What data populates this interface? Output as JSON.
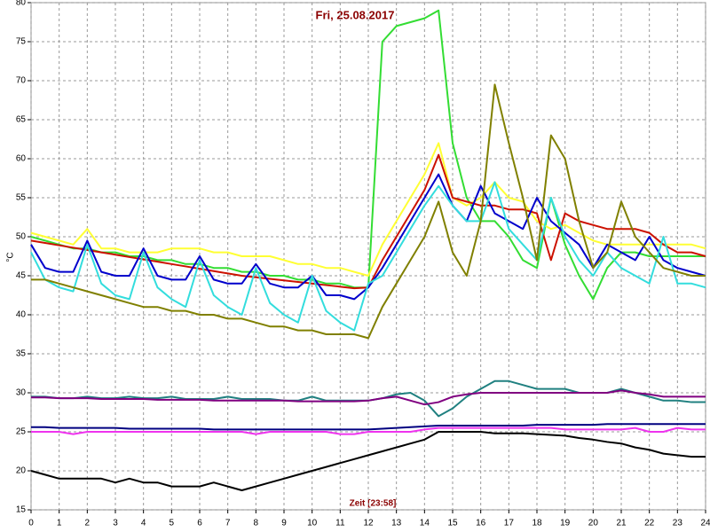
{
  "chart_data": {
    "type": "line",
    "title": "Fri, 25.08.2017",
    "x_label": "Zeit [23:58]",
    "y_label": "°C",
    "xlim": [
      0,
      24
    ],
    "ylim": [
      15,
      80
    ],
    "xticks": [
      0,
      1,
      2,
      3,
      4,
      5,
      6,
      7,
      8,
      9,
      10,
      11,
      12,
      13,
      14,
      15,
      16,
      17,
      18,
      19,
      20,
      21,
      22,
      23,
      24
    ],
    "yticks": [
      15,
      20,
      25,
      30,
      35,
      40,
      45,
      50,
      55,
      60,
      65,
      70,
      75,
      80
    ],
    "grid": true,
    "x": [
      0,
      0.5,
      1,
      1.5,
      2,
      2.5,
      3,
      3.5,
      4,
      4.5,
      5,
      5.5,
      6,
      6.5,
      7,
      7.5,
      8,
      8.5,
      9,
      9.5,
      10,
      10.5,
      11,
      11.5,
      12,
      12.5,
      13,
      13.5,
      14,
      14.5,
      15,
      15.5,
      16,
      16.5,
      17,
      17.5,
      18,
      18.5,
      19,
      19.5,
      20,
      20.5,
      21,
      21.5,
      22,
      22.5,
      23,
      23.5,
      24
    ],
    "series": [
      {
        "color": "#33dd33",
        "values": [
          50,
          49.5,
          49,
          48.5,
          48.5,
          48,
          48,
          47.5,
          47.5,
          47,
          47,
          46.5,
          46.5,
          46,
          46,
          45.5,
          45.5,
          45,
          45,
          44.5,
          44.5,
          44,
          44,
          43.5,
          43.5,
          75,
          77,
          77.5,
          78,
          79,
          62,
          55,
          52,
          52,
          50,
          47,
          46,
          55,
          49,
          45,
          42,
          46,
          48,
          48,
          47.5,
          47.5,
          47.5,
          47.5,
          47.5
        ]
      },
      {
        "color": "#ffff33",
        "values": [
          50.5,
          50,
          49.5,
          49,
          51,
          48.5,
          48.5,
          48,
          48,
          48,
          48.5,
          48.5,
          48.5,
          48,
          48,
          47.5,
          47.5,
          47.5,
          47,
          46.5,
          46.5,
          46,
          46,
          45.5,
          45,
          49,
          52,
          55,
          58,
          62,
          55,
          54,
          55,
          57,
          55,
          54.5,
          52,
          51,
          51.5,
          50.5,
          49.5,
          49,
          49,
          49,
          49,
          49,
          49,
          49,
          48.5
        ]
      },
      {
        "color": "#cc1100",
        "values": [
          49.5,
          49.2,
          48.9,
          48.6,
          48.3,
          48,
          47.7,
          47.4,
          47.1,
          46.8,
          46.5,
          46.2,
          45.9,
          45.6,
          45.3,
          45,
          44.8,
          44.6,
          44.4,
          44.2,
          44,
          43.8,
          43.6,
          43.4,
          43.5,
          47,
          50,
          53,
          56,
          60.5,
          55,
          54.5,
          54,
          54,
          53.5,
          53.5,
          53,
          47,
          53,
          52,
          51.5,
          51,
          51,
          51,
          50.5,
          49,
          48,
          48,
          47.5
        ]
      },
      {
        "color": "#0000cc",
        "values": [
          49,
          46,
          45.5,
          45.5,
          49.5,
          45.5,
          45,
          45,
          48.5,
          45,
          44.5,
          44.5,
          47.5,
          44.5,
          44,
          44,
          46.5,
          44,
          43.5,
          43.5,
          45,
          42.5,
          42.5,
          42,
          43.5,
          46,
          49,
          52,
          55,
          58,
          54,
          52,
          56.5,
          53,
          52,
          51,
          55,
          52,
          50.5,
          49,
          46,
          49,
          48,
          47,
          50,
          47,
          46,
          45.5,
          45
        ]
      },
      {
        "color": "#33dddd",
        "values": [
          48,
          44.5,
          43.5,
          43,
          49,
          44,
          42.5,
          42,
          48,
          43.5,
          42,
          41,
          47,
          42.5,
          41,
          40,
          46,
          41.5,
          40,
          39,
          45,
          40.5,
          39,
          38,
          44,
          45,
          48,
          51,
          54,
          56.5,
          54,
          52,
          52,
          57,
          51,
          49,
          47,
          55,
          50,
          47,
          45,
          48,
          46,
          45,
          44,
          50,
          44,
          44,
          43.5
        ]
      },
      {
        "color": "#808000",
        "values": [
          44.5,
          44.5,
          44,
          43.5,
          43,
          42.5,
          42,
          41.5,
          41,
          41,
          40.5,
          40.5,
          40,
          40,
          39.5,
          39.5,
          39,
          38.5,
          38.5,
          38,
          38,
          37.5,
          37.5,
          37.5,
          37,
          41,
          44,
          47,
          50,
          54.5,
          48,
          45,
          52,
          69.5,
          62,
          55,
          47,
          63,
          60,
          52,
          46,
          48,
          54.5,
          50,
          48,
          46,
          45.5,
          45,
          45
        ]
      },
      {
        "color": "#208080",
        "values": [
          29.5,
          29.5,
          29.3,
          29.3,
          29.5,
          29.3,
          29.3,
          29.5,
          29.3,
          29.3,
          29.5,
          29.2,
          29.2,
          29.2,
          29.5,
          29.2,
          29.2,
          29.2,
          29,
          29,
          29.5,
          29,
          29,
          29,
          29,
          29.3,
          29.8,
          30,
          29,
          27,
          28,
          29.5,
          30.5,
          31.5,
          31.5,
          31,
          30.5,
          30.5,
          30.5,
          30,
          30,
          30,
          30.5,
          30,
          29.5,
          29,
          29,
          28.8,
          28.8
        ]
      },
      {
        "color": "#800080",
        "values": [
          29.4,
          29.4,
          29.3,
          29.3,
          29.3,
          29.2,
          29.2,
          29.2,
          29.2,
          29.1,
          29.1,
          29.1,
          29.1,
          29,
          29,
          29,
          29,
          29,
          29,
          28.9,
          28.9,
          28.9,
          28.9,
          28.9,
          29,
          29.3,
          29.5,
          29,
          28.5,
          28.8,
          29.5,
          29.8,
          30,
          30,
          30,
          30,
          30,
          30,
          30,
          30,
          30,
          30,
          30.3,
          30,
          29.8,
          29.5,
          29.5,
          29.5,
          29.5
        ]
      },
      {
        "color": "#000080",
        "values": [
          25.6,
          25.6,
          25.5,
          25.5,
          25.5,
          25.5,
          25.5,
          25.4,
          25.4,
          25.4,
          25.4,
          25.4,
          25.4,
          25.3,
          25.3,
          25.3,
          25.3,
          25.3,
          25.3,
          25.3,
          25.3,
          25.3,
          25.3,
          25.3,
          25.3,
          25.4,
          25.5,
          25.6,
          25.7,
          25.8,
          25.8,
          25.8,
          25.8,
          25.8,
          25.8,
          25.8,
          25.9,
          25.9,
          25.9,
          25.9,
          25.9,
          26,
          26,
          26,
          26,
          26,
          26,
          26,
          26
        ]
      },
      {
        "color": "#ee33ee",
        "values": [
          25,
          25,
          25,
          24.7,
          25,
          25,
          25,
          25,
          25,
          25,
          25,
          25,
          25,
          25,
          25,
          25,
          24.7,
          25,
          25,
          25,
          25,
          25,
          24.7,
          24.7,
          25,
          25,
          25,
          25,
          25.3,
          25.5,
          25.5,
          25.5,
          25.5,
          25.5,
          25.5,
          25.5,
          25.5,
          25.5,
          25.3,
          25.3,
          25.3,
          25.3,
          25.3,
          25.5,
          25,
          25,
          25.5,
          25.3,
          25.3
        ]
      },
      {
        "color": "#000000",
        "values": [
          20,
          19.5,
          19,
          19,
          19,
          19,
          18.5,
          19,
          18.5,
          18.5,
          18,
          18,
          18,
          18.5,
          18,
          17.5,
          18,
          18.5,
          19,
          19.5,
          20,
          20.5,
          21,
          21.5,
          22,
          22.5,
          23,
          23.5,
          24,
          25,
          25,
          25,
          25,
          24.8,
          24.8,
          24.8,
          24.7,
          24.6,
          24.5,
          24.2,
          24,
          23.7,
          23.5,
          23,
          22.7,
          22.2,
          22,
          21.8,
          21.8
        ]
      }
    ]
  }
}
